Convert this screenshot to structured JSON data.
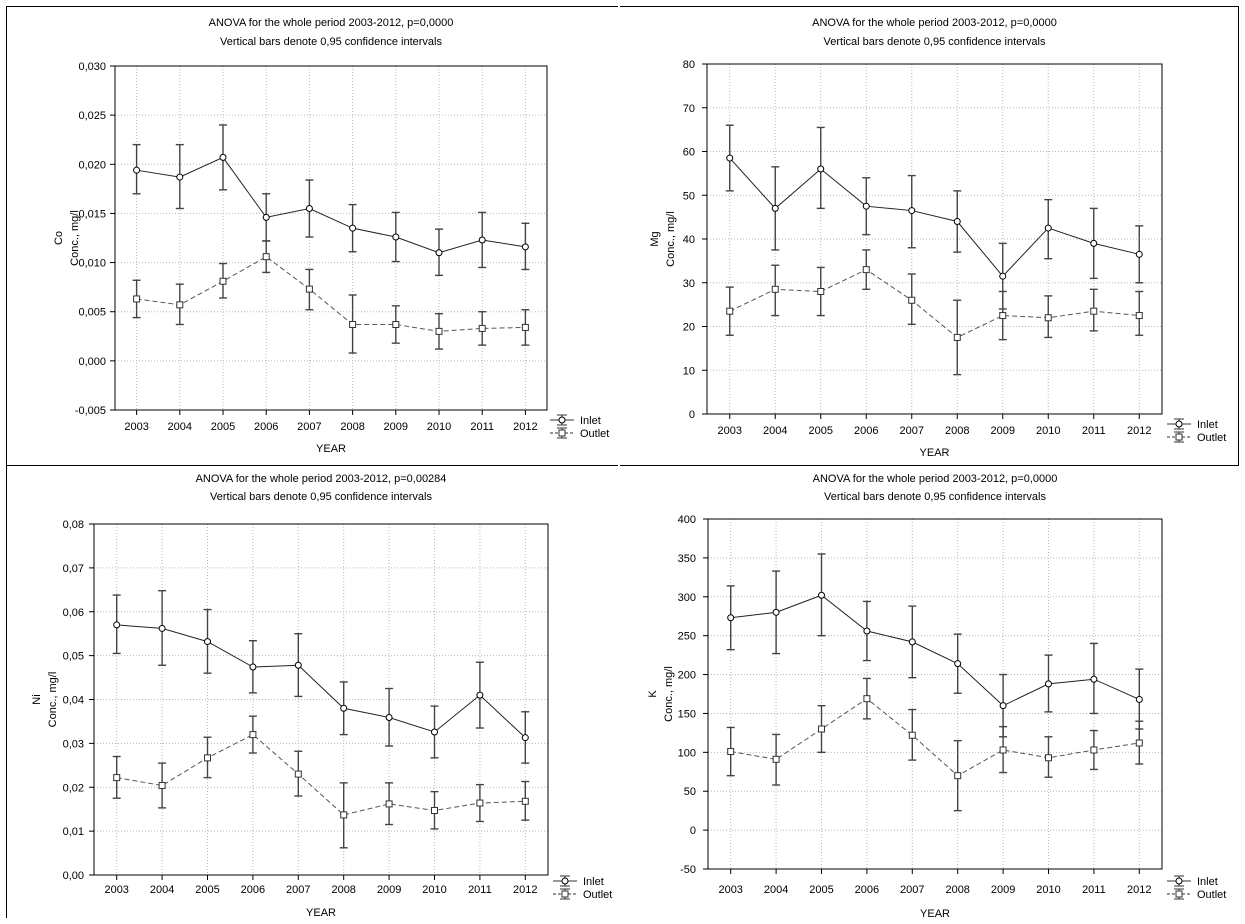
{
  "legend": {
    "inlet": "Inlet",
    "outlet": "Outlet"
  },
  "chart_data": [
    {
      "type": "line",
      "title": "ANOVA for the whole period 2003-2012, p=0,0000",
      "subtitle": "Vertical bars denote 0,95 confidence intervals",
      "xlabel": "YEAR",
      "ylabel_element": "Co",
      "ylabel": "Conc., mg/l",
      "ylim": [
        -0.005,
        0.03
      ],
      "yticks": [
        -0.005,
        0,
        0.005,
        0.01,
        0.015,
        0.02,
        0.025,
        0.03
      ],
      "ytick_labels": [
        "-0,005",
        "0,000",
        "0,005",
        "0,010",
        "0,015",
        "0,020",
        "0,025",
        "0,030"
      ],
      "categories": [
        "2003",
        "2004",
        "2005",
        "2006",
        "2007",
        "2008",
        "2009",
        "2010",
        "2011",
        "2012"
      ],
      "grid": true,
      "legend_position": "bottom-right outside",
      "series": [
        {
          "name": "Inlet",
          "style": "solid",
          "marker": "circle",
          "values": [
            0.0194,
            0.0187,
            0.0207,
            0.0146,
            0.0155,
            0.0135,
            0.0126,
            0.011,
            0.0123,
            0.0116
          ],
          "lower": [
            0.017,
            0.0155,
            0.0174,
            0.0122,
            0.0126,
            0.0111,
            0.0101,
            0.0087,
            0.0095,
            0.0093
          ],
          "upper": [
            0.022,
            0.022,
            0.024,
            0.017,
            0.0184,
            0.0159,
            0.0151,
            0.0134,
            0.0151,
            0.014
          ]
        },
        {
          "name": "Outlet",
          "style": "dashed",
          "marker": "square",
          "values": [
            0.0063,
            0.0057,
            0.0081,
            0.0106,
            0.0073,
            0.0037,
            0.0037,
            0.003,
            0.0033,
            0.0034
          ],
          "lower": [
            0.0044,
            0.0037,
            0.0064,
            0.009,
            0.0052,
            0.0008,
            0.0018,
            0.0012,
            0.0016,
            0.0016
          ],
          "upper": [
            0.0082,
            0.0078,
            0.0099,
            0.0122,
            0.0093,
            0.0067,
            0.0056,
            0.0048,
            0.005,
            0.0052
          ]
        }
      ]
    },
    {
      "type": "line",
      "title": "ANOVA for the whole period 2003-2012, p=0,0000",
      "subtitle": "Vertical bars denote 0,95 confidence intervals",
      "xlabel": "YEAR",
      "ylabel_element": "Mg",
      "ylabel": "Conc., mg/l",
      "ylim": [
        0,
        80
      ],
      "yticks": [
        0,
        10,
        20,
        30,
        40,
        50,
        60,
        70,
        80
      ],
      "ytick_labels": [
        "0",
        "10",
        "20",
        "30",
        "40",
        "50",
        "60",
        "70",
        "80"
      ],
      "categories": [
        "2003",
        "2004",
        "2005",
        "2006",
        "2007",
        "2008",
        "2009",
        "2010",
        "2011",
        "2012"
      ],
      "grid": true,
      "legend_position": "bottom-right outside",
      "series": [
        {
          "name": "Inlet",
          "style": "solid",
          "marker": "circle",
          "values": [
            58.5,
            47.0,
            56.0,
            47.5,
            46.5,
            44.0,
            31.5,
            42.5,
            39.0,
            36.5
          ],
          "lower": [
            51.0,
            37.5,
            47.0,
            41.0,
            38.0,
            37.0,
            24.0,
            35.5,
            31.0,
            30.0
          ],
          "upper": [
            66.0,
            56.5,
            65.5,
            54.0,
            54.5,
            51.0,
            39.0,
            49.0,
            47.0,
            43.0
          ]
        },
        {
          "name": "Outlet",
          "style": "dashed",
          "marker": "square",
          "values": [
            23.5,
            28.5,
            28.0,
            33.0,
            26.0,
            17.5,
            22.5,
            22.0,
            23.5,
            22.5
          ],
          "lower": [
            18.0,
            22.5,
            22.5,
            28.5,
            20.5,
            9.0,
            17.0,
            17.5,
            19.0,
            18.0
          ],
          "upper": [
            29.0,
            34.0,
            33.5,
            37.5,
            32.0,
            26.0,
            28.0,
            27.0,
            28.5,
            28.0
          ]
        }
      ]
    },
    {
      "type": "line",
      "title": "ANOVA for the whole period 2003-2012, p=0,00284",
      "subtitle": "Vertical bars denote 0,95 confidence intervals",
      "xlabel": "YEAR",
      "ylabel_element": "Ni",
      "ylabel": "Conc., mg/l",
      "ylim": [
        0,
        0.08
      ],
      "yticks": [
        0,
        0.01,
        0.02,
        0.03,
        0.04,
        0.05,
        0.06,
        0.07,
        0.08
      ],
      "ytick_labels": [
        "0,00",
        "0,01",
        "0,02",
        "0,03",
        "0,04",
        "0,05",
        "0,06",
        "0,07",
        "0,08"
      ],
      "categories": [
        "2003",
        "2004",
        "2005",
        "2006",
        "2007",
        "2008",
        "2009",
        "2010",
        "2011",
        "2012"
      ],
      "grid": true,
      "legend_position": "bottom-right outside",
      "series": [
        {
          "name": "Inlet",
          "style": "solid",
          "marker": "circle",
          "values": [
            0.057,
            0.0562,
            0.0532,
            0.0474,
            0.0478,
            0.038,
            0.0359,
            0.0326,
            0.041,
            0.0313
          ],
          "lower": [
            0.0505,
            0.0478,
            0.046,
            0.0415,
            0.0407,
            0.032,
            0.0294,
            0.0267,
            0.0335,
            0.0255
          ],
          "upper": [
            0.0638,
            0.0648,
            0.0605,
            0.0534,
            0.055,
            0.044,
            0.0425,
            0.0385,
            0.0485,
            0.0372
          ]
        },
        {
          "name": "Outlet",
          "style": "dashed",
          "marker": "square",
          "values": [
            0.0222,
            0.0204,
            0.0267,
            0.032,
            0.023,
            0.0137,
            0.0162,
            0.0147,
            0.0164,
            0.0168
          ],
          "lower": [
            0.0175,
            0.0153,
            0.0222,
            0.0278,
            0.018,
            0.0062,
            0.0115,
            0.0105,
            0.0122,
            0.0125
          ],
          "upper": [
            0.027,
            0.0255,
            0.0314,
            0.0362,
            0.0282,
            0.021,
            0.021,
            0.019,
            0.0206,
            0.0213
          ]
        }
      ]
    },
    {
      "type": "line",
      "title": "ANOVA for the whole period 2003-2012, p=0,0000",
      "subtitle": "Vertical bars denote 0,95 confidence intervals",
      "xlabel": "YEAR",
      "ylabel_element": "K",
      "ylabel": "Conc., mg/l",
      "ylim": [
        -50,
        400
      ],
      "yticks": [
        -50,
        0,
        50,
        100,
        150,
        200,
        250,
        300,
        350,
        400
      ],
      "ytick_labels": [
        "-50",
        "0",
        "50",
        "100",
        "150",
        "200",
        "250",
        "300",
        "350",
        "400"
      ],
      "categories": [
        "2003",
        "2004",
        "2005",
        "2006",
        "2007",
        "2008",
        "2009",
        "2010",
        "2011",
        "2012"
      ],
      "grid": true,
      "legend_position": "bottom-right outside",
      "series": [
        {
          "name": "Inlet",
          "style": "solid",
          "marker": "circle",
          "values": [
            273,
            280,
            302,
            256,
            242,
            214,
            160,
            188,
            194,
            168
          ],
          "lower": [
            232,
            227,
            250,
            218,
            196,
            176,
            120,
            152,
            150,
            130
          ],
          "upper": [
            314,
            333,
            355,
            294,
            288,
            252,
            200,
            225,
            240,
            207
          ]
        },
        {
          "name": "Outlet",
          "style": "dashed",
          "marker": "square",
          "values": [
            101,
            91,
            130,
            169,
            122,
            70,
            103,
            93,
            103,
            112
          ],
          "lower": [
            70,
            58,
            100,
            143,
            90,
            25,
            74,
            68,
            78,
            85
          ],
          "upper": [
            132,
            123,
            160,
            195,
            155,
            115,
            133,
            120,
            128,
            140
          ]
        }
      ]
    }
  ]
}
